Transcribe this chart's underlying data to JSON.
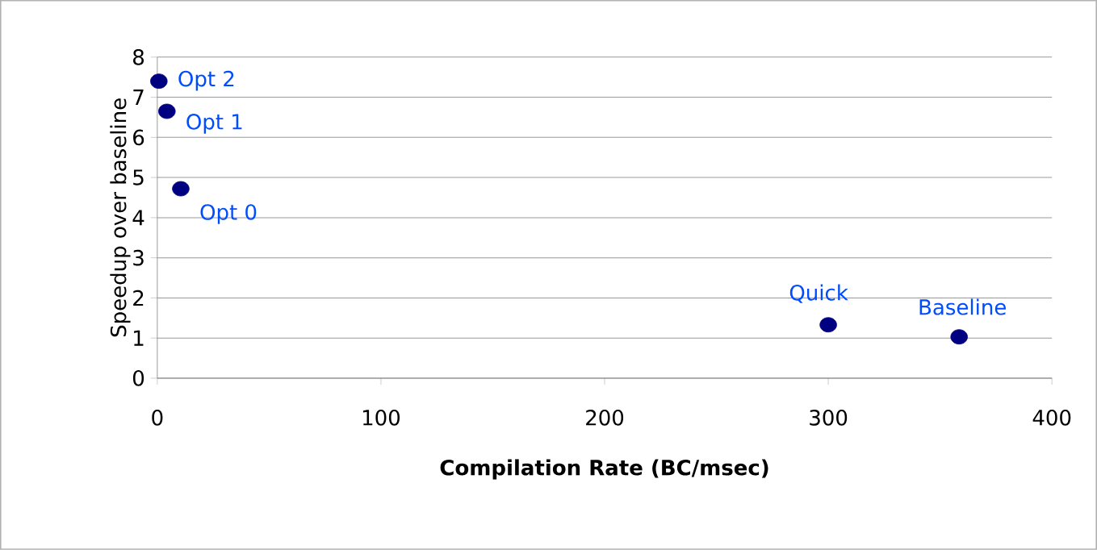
{
  "chart_data": {
    "type": "scatter",
    "xlabel": "Compilation Rate (BC/msec)",
    "ylabel": "Speedup over baseline",
    "series": [
      {
        "color": "#000080",
        "x": [
          0.7,
          4.3,
          10.5,
          300,
          358.5
        ],
        "values": [
          7.4,
          6.65,
          4.72,
          1.33,
          1.03
        ]
      }
    ],
    "marker": "circle",
    "grid": "y",
    "xlim": [
      0,
      400
    ],
    "xticks": [
      0,
      100,
      200,
      300,
      400
    ],
    "ylim": [
      0,
      8
    ],
    "yticks": [
      0,
      1,
      2,
      3,
      4,
      5,
      6,
      7,
      8
    ],
    "annotations": [
      {
        "text": "Opt 2",
        "x": 0.7,
        "y": 7.4
      },
      {
        "text": "Opt 1",
        "x": 4.3,
        "y": 6.65
      },
      {
        "text": "Opt 0",
        "x": 10.5,
        "y": 4.72
      },
      {
        "text": "Quick",
        "x": 300,
        "y": 1.33
      },
      {
        "text": "Baseline",
        "x": 358.5,
        "y": 1.03
      }
    ]
  }
}
